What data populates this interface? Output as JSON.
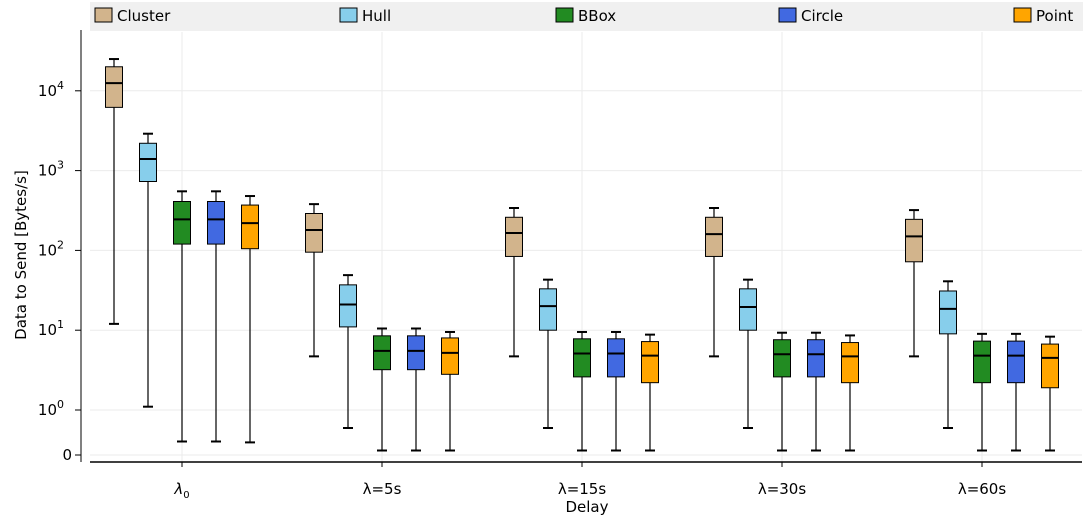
{
  "chart_data": {
    "type": "box",
    "xlabel": "Delay",
    "ylabel": "Data to Send [Bytes/s]",
    "y_scale": "symlog",
    "y_ticks": [
      {
        "value": 0,
        "label": "0"
      },
      {
        "value": 1,
        "label": "10",
        "exp": "0"
      },
      {
        "value": 10,
        "label": "10",
        "exp": "1"
      },
      {
        "value": 100,
        "label": "10",
        "exp": "2"
      },
      {
        "value": 1000,
        "label": "10",
        "exp": "3"
      },
      {
        "value": 10000,
        "label": "10",
        "exp": "4"
      }
    ],
    "grid": true,
    "legend_position": "top",
    "categories": [
      {
        "label": "λ",
        "sub": "0"
      },
      {
        "label": "λ=5s"
      },
      {
        "label": "λ=15s"
      },
      {
        "label": "λ=30s"
      },
      {
        "label": "λ=60s"
      }
    ],
    "series": [
      {
        "name": "Cluster",
        "color": "#d2b48c",
        "boxes": [
          {
            "whislo": 12,
            "q1": 6200,
            "med": 12500,
            "q3": 20000,
            "whishi": 25000
          },
          {
            "whislo": 4.7,
            "q1": 95,
            "med": 180,
            "q3": 290,
            "whishi": 380
          },
          {
            "whislo": 4.7,
            "q1": 84,
            "med": 165,
            "q3": 260,
            "whishi": 340
          },
          {
            "whislo": 4.7,
            "q1": 84,
            "med": 160,
            "q3": 260,
            "whishi": 340
          },
          {
            "whislo": 4.7,
            "q1": 72,
            "med": 150,
            "q3": 245,
            "whishi": 320
          }
        ]
      },
      {
        "name": "Hull",
        "color": "#87ceeb",
        "boxes": [
          {
            "whislo": 1.1,
            "q1": 730,
            "med": 1400,
            "q3": 2200,
            "whishi": 2900
          },
          {
            "whislo": 0.6,
            "q1": 11,
            "med": 21,
            "q3": 37,
            "whishi": 49
          },
          {
            "whislo": 0.6,
            "q1": 10,
            "med": 20,
            "q3": 33,
            "whishi": 43
          },
          {
            "whislo": 0.6,
            "q1": 10,
            "med": 19.5,
            "q3": 33,
            "whishi": 43
          },
          {
            "whislo": 0.6,
            "q1": 9,
            "med": 18.5,
            "q3": 31,
            "whishi": 41
          }
        ]
      },
      {
        "name": "BBox",
        "color": "#228b22",
        "boxes": [
          {
            "whislo": 0.3,
            "q1": 120,
            "med": 245,
            "q3": 410,
            "whishi": 550
          },
          {
            "whislo": 0.1,
            "q1": 3.2,
            "med": 5.5,
            "q3": 8.5,
            "whishi": 10.5
          },
          {
            "whislo": 0.1,
            "q1": 2.6,
            "med": 5.1,
            "q3": 7.8,
            "whishi": 9.5
          },
          {
            "whislo": 0.1,
            "q1": 2.6,
            "med": 5.0,
            "q3": 7.6,
            "whishi": 9.3
          },
          {
            "whislo": 0.1,
            "q1": 2.2,
            "med": 4.8,
            "q3": 7.3,
            "whishi": 9.0
          }
        ]
      },
      {
        "name": "Circle",
        "color": "#4169e1",
        "boxes": [
          {
            "whislo": 0.3,
            "q1": 120,
            "med": 245,
            "q3": 410,
            "whishi": 550
          },
          {
            "whislo": 0.1,
            "q1": 3.2,
            "med": 5.5,
            "q3": 8.5,
            "whishi": 10.5
          },
          {
            "whislo": 0.1,
            "q1": 2.6,
            "med": 5.1,
            "q3": 7.8,
            "whishi": 9.5
          },
          {
            "whislo": 0.1,
            "q1": 2.6,
            "med": 5.0,
            "q3": 7.6,
            "whishi": 9.3
          },
          {
            "whislo": 0.1,
            "q1": 2.2,
            "med": 4.8,
            "q3": 7.3,
            "whishi": 9.0
          }
        ]
      },
      {
        "name": "Point",
        "color": "#ffa500",
        "boxes": [
          {
            "whislo": 0.28,
            "q1": 105,
            "med": 220,
            "q3": 370,
            "whishi": 480
          },
          {
            "whislo": 0.1,
            "q1": 2.8,
            "med": 5.2,
            "q3": 8.0,
            "whishi": 9.5
          },
          {
            "whislo": 0.1,
            "q1": 2.2,
            "med": 4.8,
            "q3": 7.2,
            "whishi": 8.8
          },
          {
            "whislo": 0.1,
            "q1": 2.2,
            "med": 4.7,
            "q3": 7.0,
            "whishi": 8.6
          },
          {
            "whislo": 0.1,
            "q1": 1.9,
            "med": 4.5,
            "q3": 6.7,
            "whishi": 8.3
          }
        ]
      }
    ]
  }
}
